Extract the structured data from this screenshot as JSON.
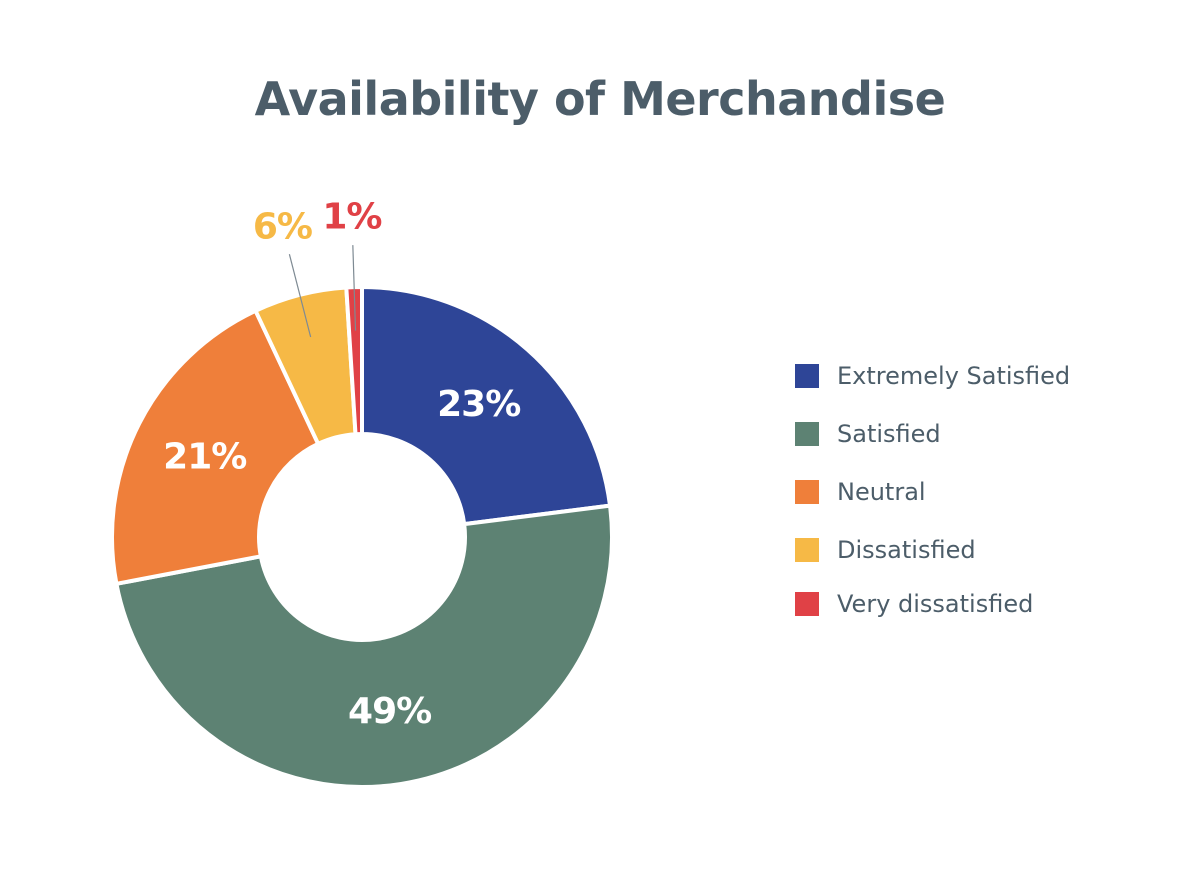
{
  "chart_data": {
    "type": "pie",
    "variant": "donut",
    "title": "Availability of Merchandise",
    "categories": [
      "Extremely Satisfied",
      "Satisfied",
      "Neutral",
      "Dissatisfied",
      "Very dissatisfied"
    ],
    "values": [
      23,
      49,
      21,
      6,
      1
    ],
    "value_labels": [
      "23%",
      "49%",
      "21%",
      "6%",
      "1%"
    ],
    "colors": [
      "#2e4597",
      "#5d8273",
      "#ef7f3a",
      "#f6b946",
      "#e04146"
    ],
    "label_colors": [
      "#ffffff",
      "#ffffff",
      "#ffffff",
      "#f6b946",
      "#e04146"
    ],
    "label_placement": [
      "inside",
      "inside",
      "inside",
      "outside",
      "outside"
    ],
    "legend_position": "right",
    "start_angle": "top",
    "direction": "clockwise"
  }
}
